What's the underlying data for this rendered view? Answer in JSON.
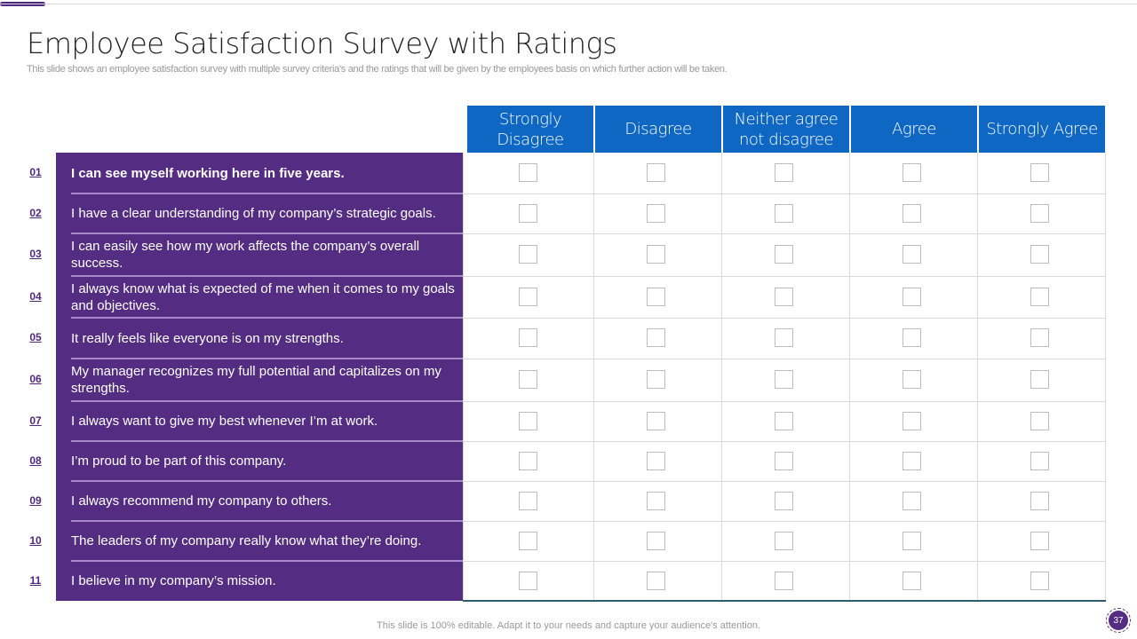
{
  "title": "Employee Satisfaction Survey with Ratings",
  "subtitle": "This slide shows an employee satisfaction survey with multiple survey criteria's and the ratings that will be given by the employees basis on which further action will be taken.",
  "columns": [
    "Strongly Disagree",
    "Disagree",
    "Neither agree not disagree",
    "Agree",
    "Strongly Agree"
  ],
  "rows": [
    {
      "num": "01",
      "text": "I can see myself working here in five years.",
      "bold": true
    },
    {
      "num": "02",
      "text": "I have a clear understanding  of my company’s strategic goals."
    },
    {
      "num": "03",
      "text": "I can easily see how my work affects the company’s overall success."
    },
    {
      "num": "04",
      "text": "I always know what is expected of me when it comes to my goals and objectives."
    },
    {
      "num": "05",
      "text": "It really  feels like everyone is on my strengths."
    },
    {
      "num": "06",
      "text": "My manager recognizes my full potential and capitalizes on my strengths."
    },
    {
      "num": "07",
      "text": "I always want to give my best whenever I’m at work."
    },
    {
      "num": "08",
      "text": "I’m proud to be part of this company."
    },
    {
      "num": "09",
      "text": "I always recommend my company to others."
    },
    {
      "num": "10",
      "text": "The leaders of my company really know what they’re doing."
    },
    {
      "num": "11",
      "text": "I believe in my company’s mission."
    }
  ],
  "footer": "This slide is 100% editable. Adapt it to your needs and capture your audience's attention.",
  "page_number": "37",
  "colors": {
    "purple": "#542d83",
    "blue": "#0e67c2"
  }
}
